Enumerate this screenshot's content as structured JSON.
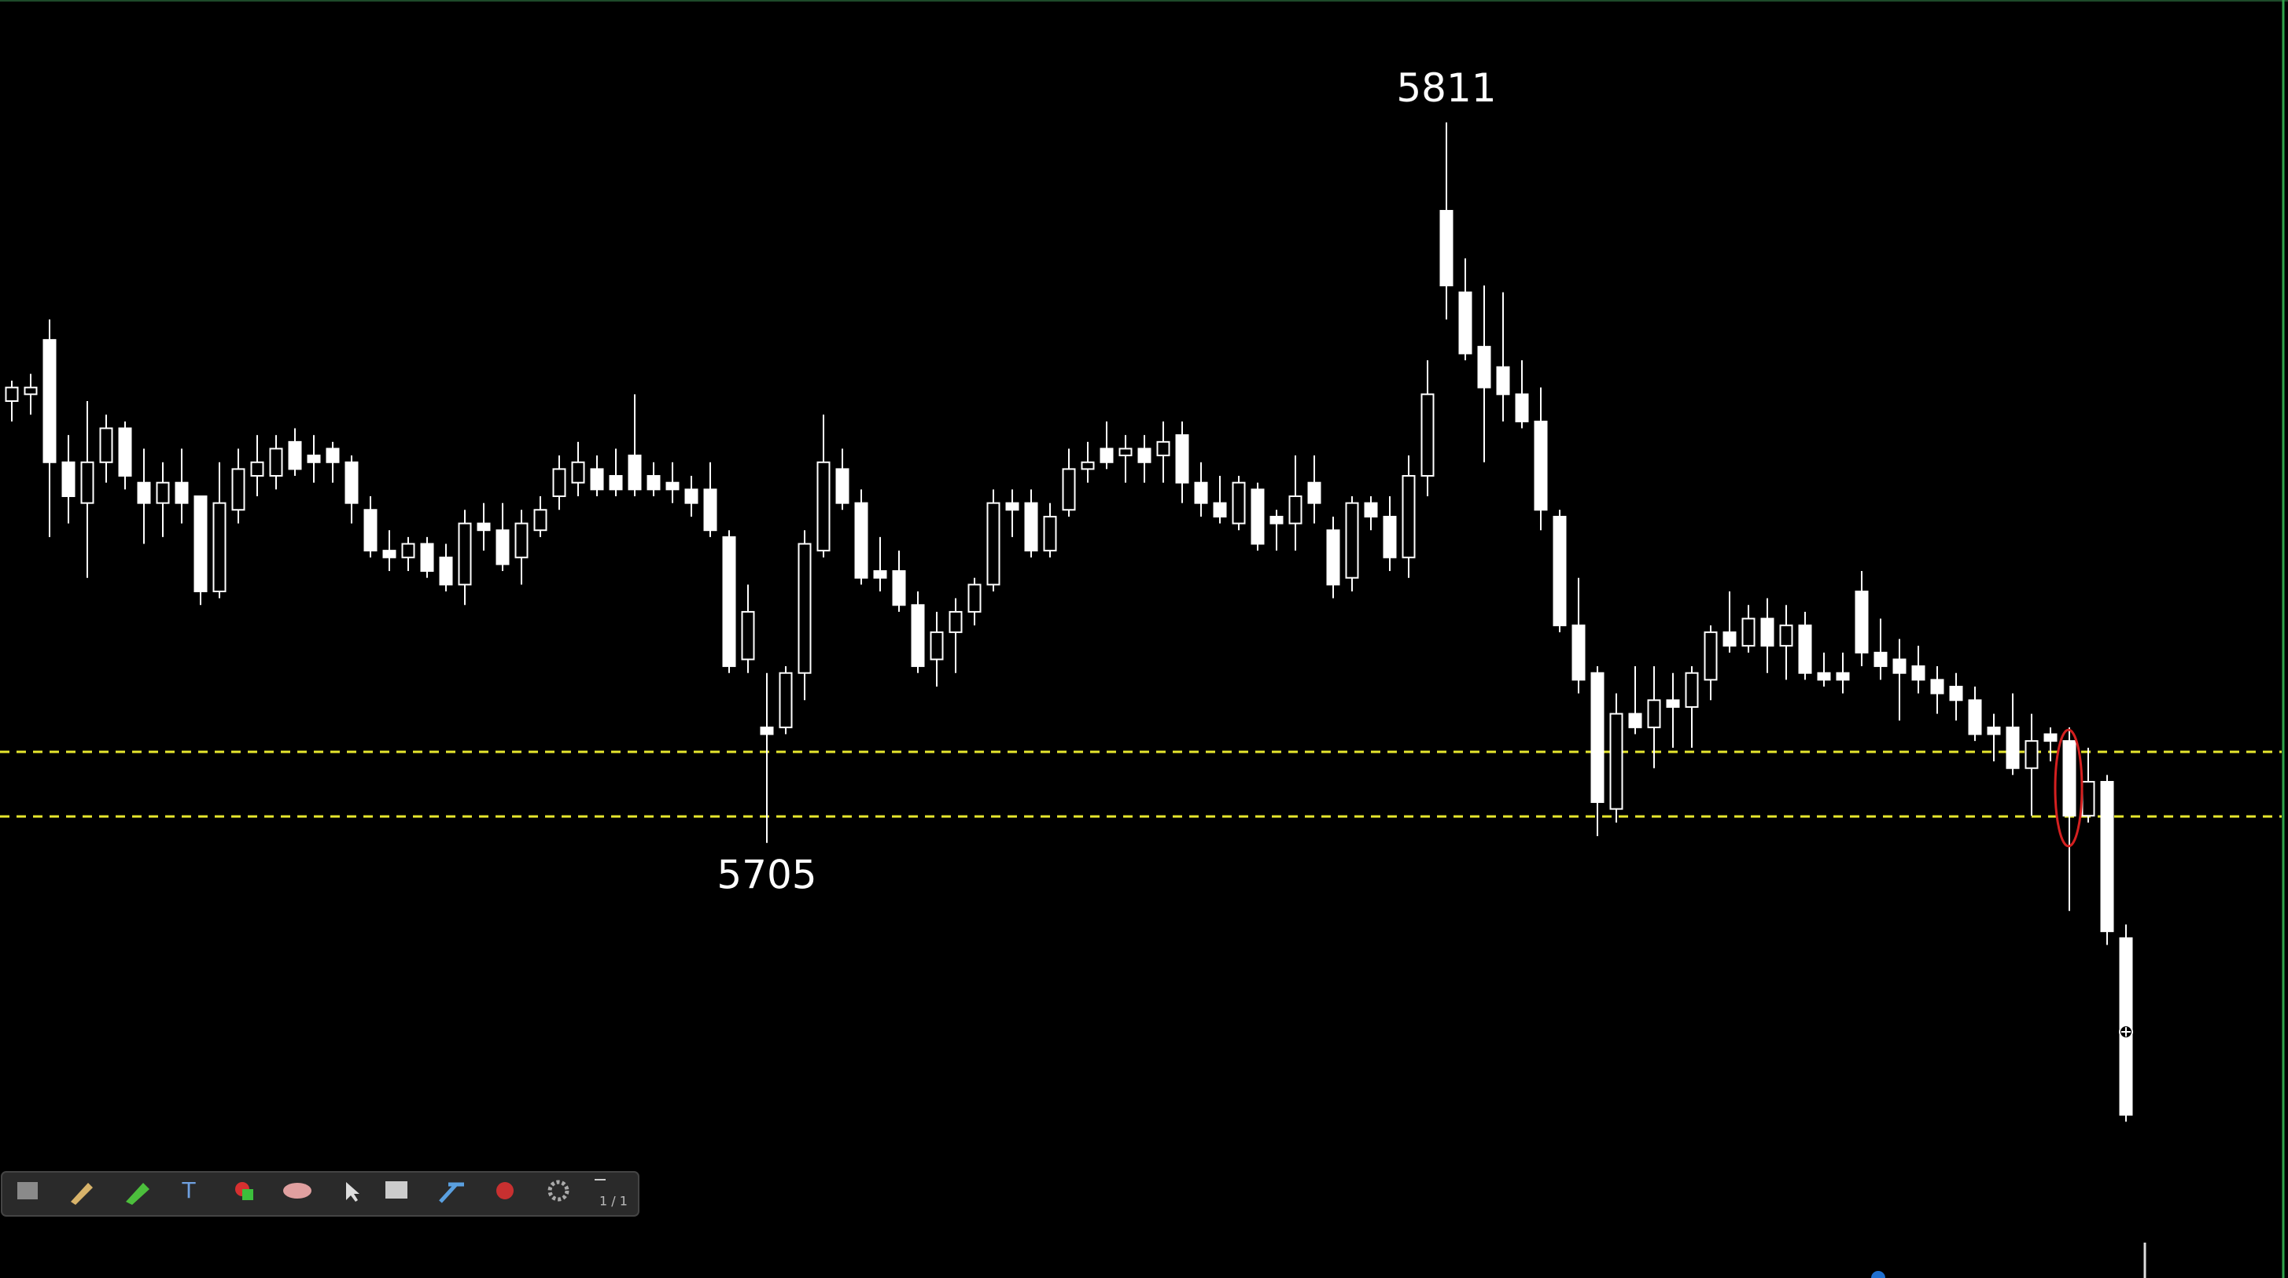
{
  "chart_data": {
    "type": "candlestick",
    "color": "#ffffff",
    "background": "#000000",
    "ylim": [
      5641,
      5829
    ],
    "annotations": [
      5811,
      5705
    ],
    "levels": [
      5718.4,
      5708.9
    ],
    "level_color": "#e6e62e",
    "ohlc": [
      [
        5770,
        5773,
        5767,
        5772
      ],
      [
        5771,
        5774,
        5768,
        5772
      ],
      [
        5779,
        5782,
        5750,
        5761
      ],
      [
        5761,
        5765,
        5752,
        5756
      ],
      [
        5755,
        5770,
        5744,
        5761
      ],
      [
        5761,
        5768,
        5758,
        5766
      ],
      [
        5766,
        5767,
        5757,
        5759
      ],
      [
        5758,
        5763,
        5749,
        5755
      ],
      [
        5755,
        5761,
        5750,
        5758
      ],
      [
        5758,
        5763,
        5752,
        5755
      ],
      [
        5756,
        5756,
        5740,
        5742
      ],
      [
        5742,
        5761,
        5741,
        5755
      ],
      [
        5754,
        5763,
        5752,
        5760
      ],
      [
        5759,
        5765,
        5756,
        5761
      ],
      [
        5759,
        5765,
        5757,
        5763
      ],
      [
        5764,
        5766,
        5759,
        5760
      ],
      [
        5762,
        5765,
        5758,
        5761
      ],
      [
        5763,
        5764,
        5758,
        5761
      ],
      [
        5761,
        5762,
        5752,
        5755
      ],
      [
        5754,
        5756,
        5747,
        5748
      ],
      [
        5748,
        5751,
        5745,
        5747
      ],
      [
        5747,
        5750,
        5745,
        5749
      ],
      [
        5749,
        5750,
        5744,
        5745
      ],
      [
        5747,
        5749,
        5742,
        5743
      ],
      [
        5743,
        5754,
        5740,
        5752
      ],
      [
        5752,
        5755,
        5748,
        5751
      ],
      [
        5751,
        5755,
        5745,
        5746
      ],
      [
        5747,
        5754,
        5743,
        5752
      ],
      [
        5751,
        5756,
        5750,
        5754
      ],
      [
        5756,
        5762,
        5754,
        5760
      ],
      [
        5758,
        5764,
        5756,
        5761
      ],
      [
        5760,
        5762,
        5756,
        5757
      ],
      [
        5759,
        5763,
        5756,
        5757
      ],
      [
        5762,
        5771,
        5756,
        5757
      ],
      [
        5759,
        5761,
        5756,
        5757
      ],
      [
        5758,
        5761,
        5755,
        5757
      ],
      [
        5757,
        5759,
        5753,
        5755
      ],
      [
        5757,
        5761,
        5750,
        5751
      ],
      [
        5750,
        5751,
        5730,
        5731
      ],
      [
        5732,
        5743,
        5730,
        5739
      ],
      [
        5722,
        5730,
        5705,
        5721
      ],
      [
        5722,
        5731,
        5721,
        5730
      ],
      [
        5730,
        5751,
        5726,
        5749
      ],
      [
        5748,
        5768,
        5747,
        5761
      ],
      [
        5760,
        5763,
        5754,
        5755
      ],
      [
        5755,
        5757,
        5743,
        5744
      ],
      [
        5745,
        5750,
        5742,
        5744
      ],
      [
        5745,
        5748,
        5739,
        5740
      ],
      [
        5740,
        5742,
        5730,
        5731
      ],
      [
        5732,
        5739,
        5728,
        5736
      ],
      [
        5736,
        5741,
        5730,
        5739
      ],
      [
        5739,
        5744,
        5737,
        5743
      ],
      [
        5743,
        5757,
        5742,
        5755
      ],
      [
        5755,
        5757,
        5750,
        5754
      ],
      [
        5755,
        5757,
        5747,
        5748
      ],
      [
        5748,
        5755,
        5747,
        5753
      ],
      [
        5754,
        5763,
        5753,
        5760
      ],
      [
        5760,
        5764,
        5758,
        5761
      ],
      [
        5763,
        5767,
        5760,
        5761
      ],
      [
        5762,
        5765,
        5758,
        5763
      ],
      [
        5763,
        5765,
        5758,
        5761
      ],
      [
        5762,
        5767,
        5758,
        5764
      ],
      [
        5765,
        5767,
        5755,
        5758
      ],
      [
        5758,
        5761,
        5753,
        5755
      ],
      [
        5755,
        5759,
        5752,
        5753
      ],
      [
        5752,
        5759,
        5751,
        5758
      ],
      [
        5757,
        5758,
        5748,
        5749
      ],
      [
        5753,
        5754,
        5748,
        5752
      ],
      [
        5752,
        5762,
        5748,
        5756
      ],
      [
        5758,
        5762,
        5752,
        5755
      ],
      [
        5751,
        5753,
        5741,
        5743
      ],
      [
        5744,
        5756,
        5742,
        5755
      ],
      [
        5755,
        5756,
        5751,
        5753
      ],
      [
        5753,
        5756,
        5745,
        5747
      ],
      [
        5747,
        5762,
        5744,
        5759
      ],
      [
        5759,
        5776,
        5756,
        5771
      ],
      [
        5798,
        5811,
        5782,
        5787
      ],
      [
        5786,
        5791,
        5776,
        5777
      ],
      [
        5778,
        5787,
        5761,
        5772
      ],
      [
        5775,
        5786,
        5767,
        5771
      ],
      [
        5771,
        5776,
        5766,
        5767
      ],
      [
        5767,
        5772,
        5751,
        5754
      ],
      [
        5753,
        5754,
        5736,
        5737
      ],
      [
        5737,
        5744,
        5727,
        5729
      ],
      [
        5730,
        5731,
        5706,
        5711
      ],
      [
        5710,
        5727,
        5708,
        5724
      ],
      [
        5724,
        5731,
        5721,
        5722
      ],
      [
        5722,
        5731,
        5716,
        5726
      ],
      [
        5726,
        5730,
        5719,
        5725
      ],
      [
        5725,
        5731,
        5719,
        5730
      ],
      [
        5729,
        5737,
        5726,
        5736
      ],
      [
        5736,
        5742,
        5733,
        5734
      ],
      [
        5734,
        5740,
        5733,
        5738
      ],
      [
        5738,
        5741,
        5730,
        5734
      ],
      [
        5734,
        5740,
        5729,
        5737
      ],
      [
        5737,
        5739,
        5729,
        5730
      ],
      [
        5730,
        5733,
        5728,
        5729
      ],
      [
        5730,
        5733,
        5727,
        5729
      ],
      [
        5742,
        5745,
        5731,
        5733
      ],
      [
        5733,
        5738,
        5729,
        5731
      ],
      [
        5732,
        5735,
        5723,
        5730
      ],
      [
        5731,
        5734,
        5727,
        5729
      ],
      [
        5729,
        5731,
        5724,
        5727
      ],
      [
        5728,
        5730,
        5723,
        5726
      ],
      [
        5726,
        5728,
        5720,
        5721
      ],
      [
        5722,
        5724,
        5717,
        5721
      ],
      [
        5722,
        5727,
        5715,
        5716
      ],
      [
        5716,
        5724,
        5709,
        5720
      ],
      [
        5721,
        5722,
        5717,
        5720
      ],
      [
        5720,
        5722,
        5695,
        5709
      ],
      [
        5709,
        5719,
        5708,
        5714
      ],
      [
        5714,
        5715,
        5690,
        5692
      ],
      [
        5691,
        5693,
        5664,
        5665
      ]
    ]
  },
  "toolbar": {
    "page": "1 / 1"
  }
}
